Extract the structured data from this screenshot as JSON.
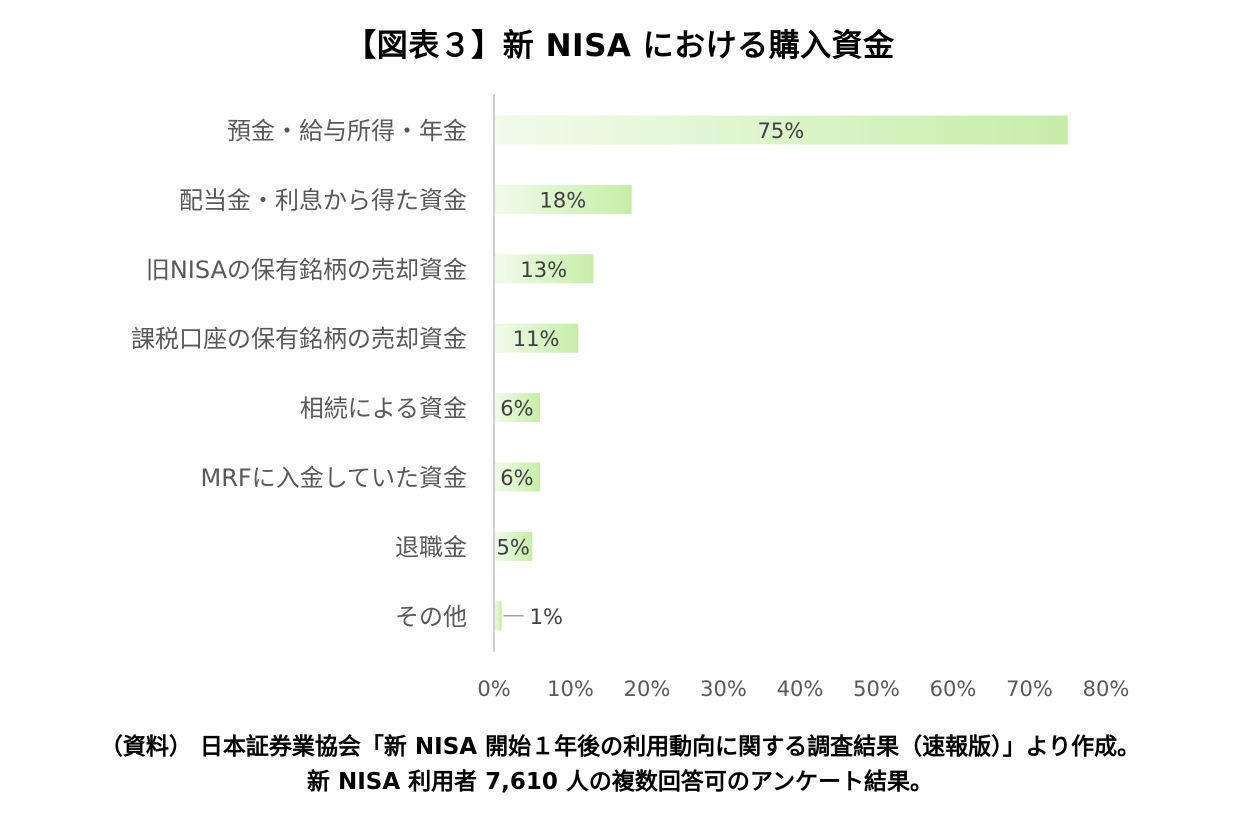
{
  "chart_data": {
    "type": "bar",
    "orientation": "horizontal",
    "title": "【図表３】新 NISA における購入資金",
    "categories": [
      "預金・給与所得・年金",
      "配当金・利息から得た資金",
      "旧NISAの保有銘柄の売却資金",
      "課税口座の保有銘柄の売却資金",
      "相続による資金",
      "MRFに入金していた資金",
      "退職金",
      "その他"
    ],
    "values": [
      75,
      18,
      13,
      11,
      6,
      6,
      5,
      1
    ],
    "data_labels": [
      "75%",
      "18%",
      "13%",
      "11%",
      "6%",
      "6%",
      "5%",
      "1%"
    ],
    "xlim": [
      0,
      80
    ],
    "ticks": [
      0,
      10,
      20,
      30,
      40,
      50,
      60,
      70,
      80
    ],
    "tick_labels": [
      "0%",
      "10%",
      "20%",
      "30%",
      "40%",
      "50%",
      "60%",
      "70%",
      "80%"
    ],
    "xlabel": "",
    "ylabel": "",
    "grid": false,
    "colors": {
      "bar_start": "#F2FBEC",
      "bar_end": "#C5EEA8",
      "axis": "#D0D0D0",
      "leader": "#A0A0A0"
    }
  },
  "notes": {
    "line1": "（資料） 日本証券業協会「新 NISA 開始１年後の利用動向に関する調査結果（速報版）」より作成。",
    "line2": "新 NISA 利用者 7,610 人の複数回答可のアンケート結果。"
  }
}
